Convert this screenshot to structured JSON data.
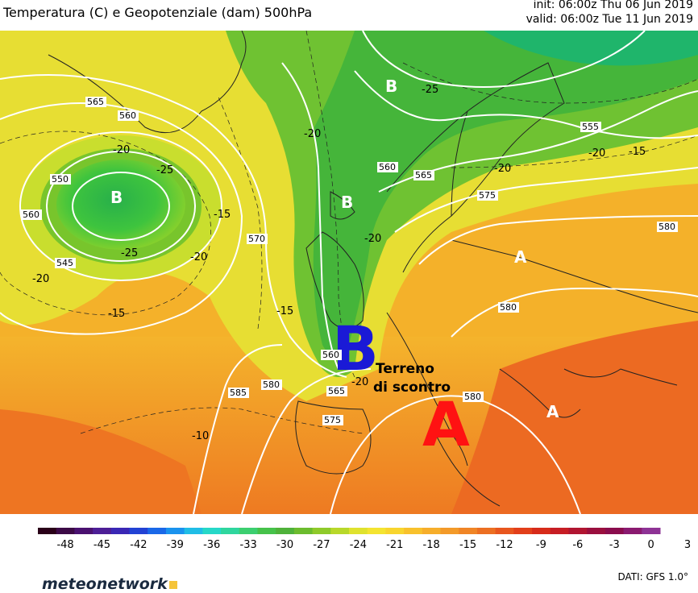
{
  "header": {
    "title": "Temperatura (C) e Geopotenziale (dam) 500hPa",
    "init": "init: 06:00z Thu 06 Jun 2019",
    "valid": "valid: 06:00z Tue 11 Jun 2019"
  },
  "map": {
    "pressure_labels": [
      "B",
      "B",
      "B",
      "A",
      "A",
      "B",
      "A"
    ],
    "annotation_line1": "Terreno",
    "annotation_line2": "di scontro",
    "geopotential_labels": [
      "565",
      "560",
      "550",
      "545",
      "555",
      "560",
      "565",
      "570",
      "575",
      "580",
      "580",
      "560",
      "565",
      "575",
      "585",
      "580",
      "580",
      "560"
    ],
    "temperature_labels": [
      "-20",
      "-25",
      "-15",
      "-20",
      "-25",
      "-20",
      "-25",
      "-20",
      "-20",
      "-15",
      "-15",
      "-20",
      "-20",
      "-15",
      "-10",
      "-20"
    ]
  },
  "colorbar": {
    "ticks": [
      "-48",
      "-45",
      "-42",
      "-39",
      "-36",
      "-33",
      "-30",
      "-27",
      "-24",
      "-21",
      "-18",
      "-15",
      "-12",
      "-9",
      "-6",
      "-3",
      "0",
      "3"
    ],
    "colors": [
      "#2a0018",
      "#3c0a46",
      "#4a1170",
      "#4d1e96",
      "#3a27b5",
      "#2242d4",
      "#1a68e8",
      "#1a93ee",
      "#20bde6",
      "#26d8c8",
      "#2fd69e",
      "#3ccf70",
      "#46c24a",
      "#4fb23a",
      "#6cbc2e",
      "#8fca2a",
      "#b8d82a",
      "#dfe22e",
      "#f4e431",
      "#f8d52e",
      "#f8c12c",
      "#f6ae2b",
      "#f39a29",
      "#f08526",
      "#ec6f22",
      "#e8561e",
      "#e23f1a",
      "#d72b1a",
      "#c71d24",
      "#b11531",
      "#9a0f3e",
      "#8a0c4d",
      "#8a1a70",
      "#8e3395"
    ]
  },
  "footer": {
    "brand": "meteonetwork",
    "source": "DATI: GFS 1.0°"
  },
  "colors": {
    "low_label": "#1a1ad6",
    "high_label": "#ff1212",
    "ocean_green": "#3fb83a",
    "warm": "#f4a81c"
  }
}
